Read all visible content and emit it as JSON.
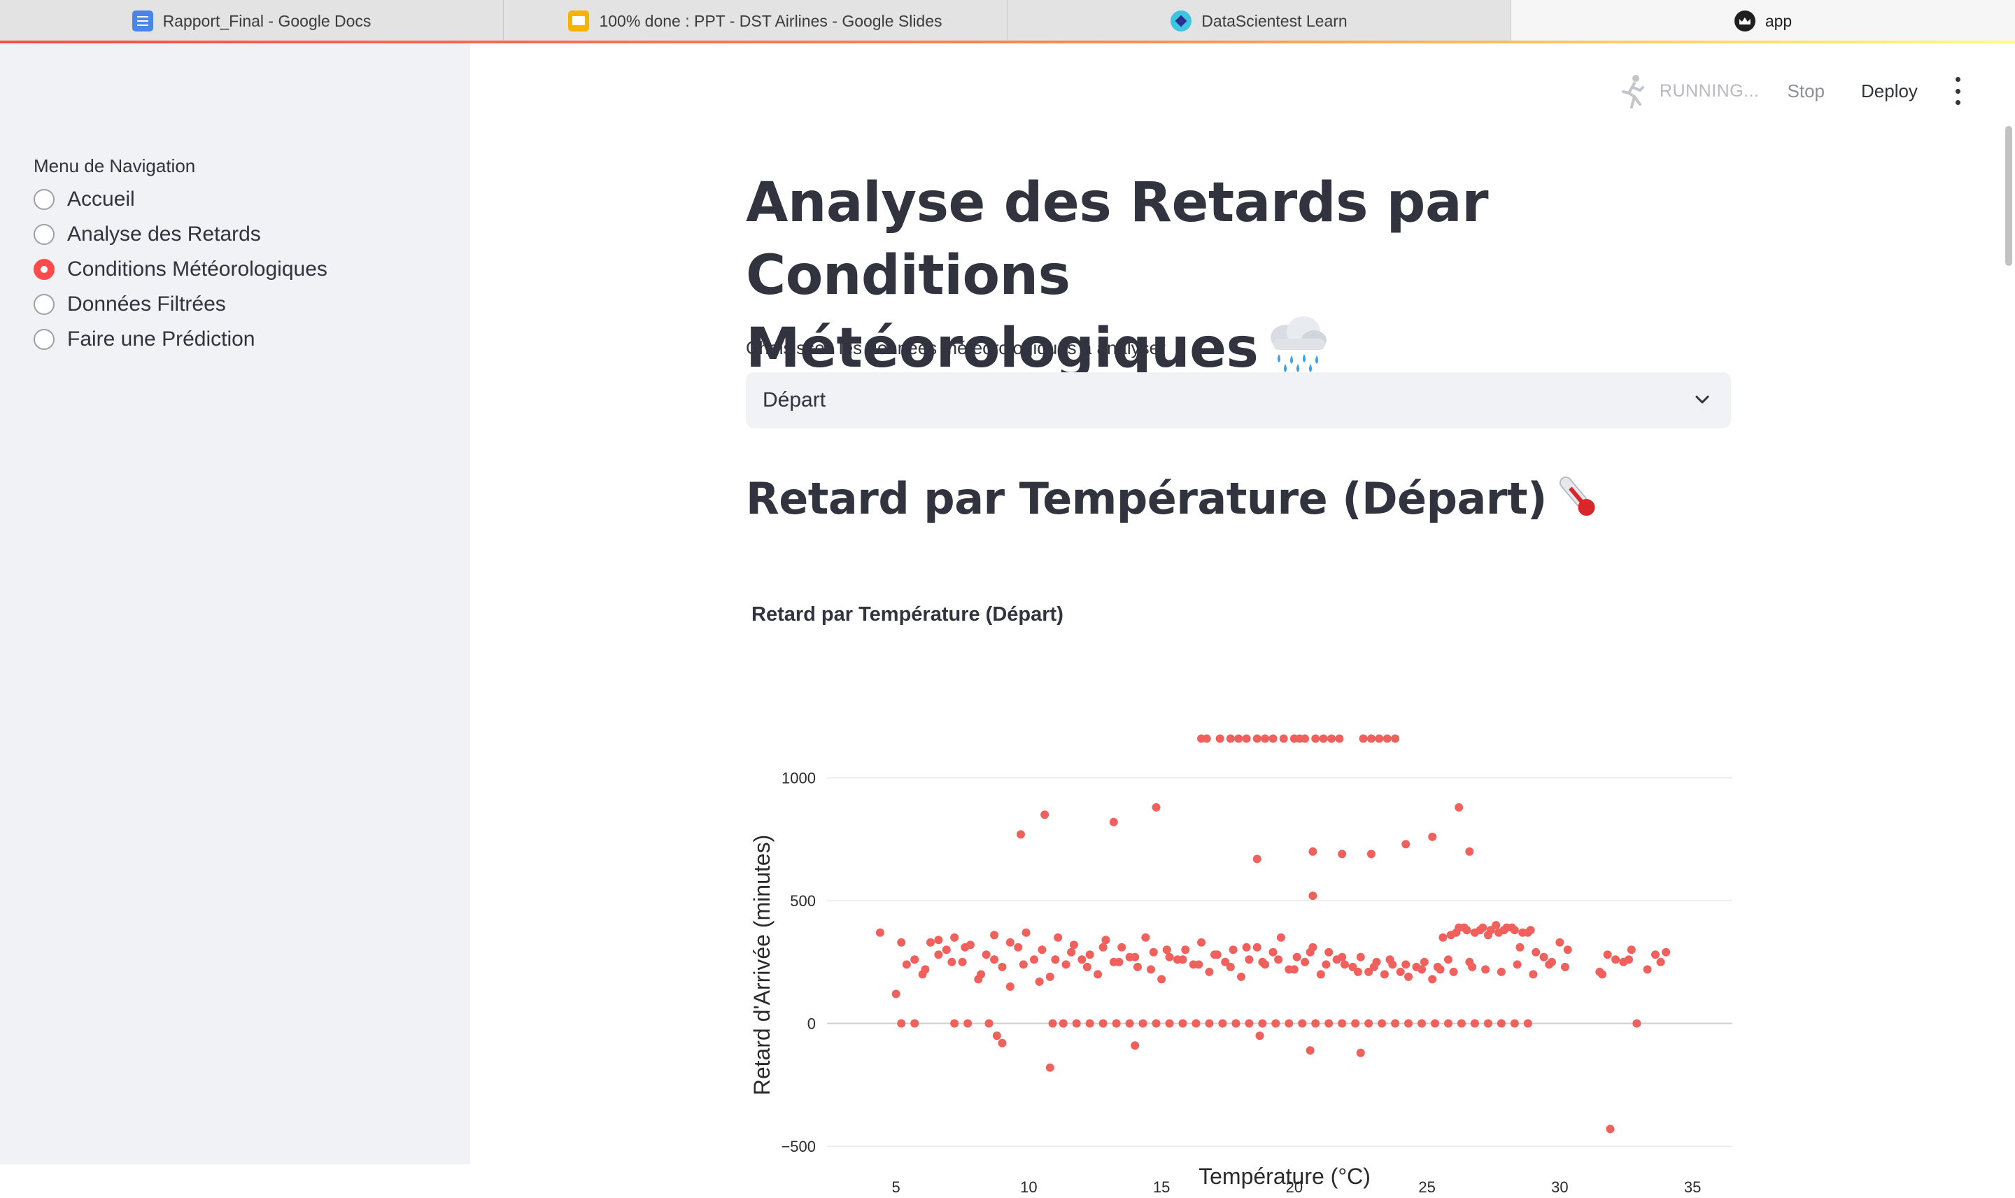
{
  "browser": {
    "tabs": [
      {
        "title": "Rapport_Final - Google Docs",
        "icon": "google-docs-icon"
      },
      {
        "title": "100% done : PPT - DST Airlines - Google Slides",
        "icon": "google-slides-icon"
      },
      {
        "title": "DataScientest Learn",
        "icon": "datascientest-icon"
      },
      {
        "title": "app",
        "icon": "streamlit-icon"
      }
    ]
  },
  "colors": {
    "accent": "#ff4b4b",
    "sidebar_bg": "#f0f2f6",
    "marker": "#f0605c",
    "text": "#31333f"
  },
  "sidebar": {
    "title": "Menu de Navigation",
    "items": [
      {
        "label": "Accueil",
        "selected": false
      },
      {
        "label": "Analyse des Retards",
        "selected": false
      },
      {
        "label": "Conditions Météorologiques",
        "selected": true
      },
      {
        "label": "Données Filtrées",
        "selected": false
      },
      {
        "label": "Faire une Prédiction",
        "selected": false
      }
    ]
  },
  "toolbar": {
    "status": "RUNNING...",
    "stop_label": "Stop",
    "deploy_label": "Deploy"
  },
  "main": {
    "title_line1": "Analyse des Retards par Conditions",
    "title_line2": "Météorologiques",
    "select_label": "Choisissez les données météorologiques à analyser",
    "select_value": "Départ",
    "section_title": "Retard par Température (Départ)"
  },
  "chart_data": {
    "type": "scatter",
    "title": "Retard par Température (Départ)",
    "xlabel": "Température (°C)",
    "ylabel": "Retard d'Arrivée (minutes)",
    "xlim": [
      2.4,
      36.5
    ],
    "ylim": [
      -540,
      1170
    ],
    "xticks": [
      5,
      10,
      15,
      20,
      25,
      30,
      35
    ],
    "yticks": [
      -500,
      0,
      500,
      1000
    ],
    "ytick_labels": [
      "−500",
      "0",
      "500",
      "1000"
    ],
    "grid": true,
    "marker_color": "#f0605c",
    "x": [
      16.5,
      16.7,
      17.2,
      17.6,
      17.9,
      18.2,
      18.6,
      18.9,
      19.2,
      19.6,
      20.0,
      20.2,
      20.4,
      20.8,
      21.1,
      21.4,
      21.7,
      22.6,
      22.9,
      23.2,
      23.5,
      23.8,
      9.7,
      10.6,
      13.2,
      14.8,
      18.6,
      20.7,
      21.8,
      22.9,
      24.2,
      25.2,
      26.2,
      26.6,
      20.7,
      4.4,
      5.0,
      5.2,
      5.4,
      5.7,
      6.0,
      6.3,
      6.6,
      6.9,
      7.2,
      7.5,
      7.8,
      8.1,
      8.4,
      8.7,
      9.0,
      9.3,
      9.6,
      9.9,
      10.2,
      10.5,
      10.8,
      11.1,
      11.4,
      11.7,
      12.0,
      12.3,
      12.6,
      12.9,
      13.2,
      13.5,
      13.8,
      14.1,
      14.4,
      14.7,
      15.0,
      15.3,
      15.6,
      15.9,
      16.2,
      16.5,
      16.8,
      17.1,
      17.4,
      17.7,
      18.0,
      18.3,
      18.6,
      18.9,
      19.2,
      19.5,
      19.8,
      20.1,
      20.4,
      20.7,
      21.0,
      21.3,
      21.6,
      21.9,
      22.2,
      22.5,
      22.8,
      23.1,
      23.4,
      23.7,
      24.0,
      24.3,
      24.6,
      24.9,
      25.2,
      25.5,
      25.8,
      26.1,
      26.4,
      26.7,
      27.0,
      27.3,
      27.6,
      27.9,
      28.2,
      28.5,
      28.8,
      29.1,
      29.4,
      29.7,
      30.0,
      30.3,
      31.5,
      31.8,
      32.1,
      32.4,
      32.7,
      33.3,
      33.6,
      34.0,
      6.1,
      6.6,
      7.1,
      7.6,
      8.2,
      8.7,
      9.3,
      9.8,
      10.4,
      11.0,
      11.6,
      12.2,
      12.8,
      13.4,
      14.0,
      14.6,
      15.2,
      15.8,
      16.4,
      17.0,
      17.6,
      18.2,
      18.8,
      19.4,
      20.0,
      20.6,
      21.2,
      21.8,
      22.4,
      23.0,
      23.6,
      24.2,
      24.8,
      25.4,
      26.0,
      26.6,
      27.2,
      27.8,
      28.4,
      29.0,
      29.6,
      30.2,
      31.6,
      32.6,
      33.8,
      26.2,
      26.5,
      26.8,
      27.1,
      27.4,
      27.7,
      28.0,
      28.3,
      28.6,
      28.9,
      25.6,
      25.9,
      5.2,
      5.7,
      7.2,
      7.7,
      8.5,
      10.9,
      11.3,
      11.8,
      12.3,
      12.8,
      13.3,
      13.8,
      14.3,
      14.8,
      15.3,
      15.8,
      16.3,
      16.8,
      17.3,
      17.8,
      18.3,
      18.8,
      19.3,
      19.8,
      20.3,
      20.8,
      21.3,
      21.8,
      22.3,
      22.8,
      23.3,
      23.8,
      24.3,
      24.8,
      25.3,
      25.8,
      26.3,
      26.8,
      27.3,
      27.8,
      28.3,
      28.8,
      32.9,
      8.8,
      9.0,
      10.8,
      14.0,
      18.7,
      20.6,
      22.5,
      31.9
    ],
    "y": [
      1160,
      1160,
      1160,
      1160,
      1160,
      1160,
      1160,
      1160,
      1160,
      1160,
      1160,
      1160,
      1160,
      1160,
      1160,
      1160,
      1160,
      1160,
      1160,
      1160,
      1160,
      1160,
      770,
      850,
      820,
      880,
      670,
      700,
      690,
      690,
      730,
      760,
      880,
      700,
      520,
      370,
      120,
      330,
      240,
      260,
      200,
      330,
      340,
      300,
      350,
      250,
      320,
      180,
      280,
      360,
      230,
      150,
      310,
      370,
      260,
      300,
      190,
      350,
      240,
      320,
      260,
      280,
      200,
      340,
      250,
      310,
      270,
      230,
      350,
      290,
      180,
      270,
      260,
      300,
      240,
      330,
      210,
      280,
      250,
      300,
      190,
      260,
      310,
      240,
      290,
      350,
      220,
      270,
      250,
      310,
      200,
      290,
      260,
      240,
      230,
      270,
      210,
      250,
      200,
      240,
      210,
      190,
      230,
      250,
      180,
      220,
      260,
      370,
      390,
      230,
      380,
      360,
      400,
      380,
      390,
      310,
      370,
      290,
      270,
      250,
      330,
      300,
      210,
      280,
      260,
      250,
      300,
      220,
      280,
      290,
      220,
      280,
      250,
      310,
      200,
      260,
      330,
      240,
      170,
      260,
      290,
      230,
      310,
      250,
      270,
      220,
      300,
      260,
      240,
      280,
      230,
      310,
      250,
      260,
      220,
      290,
      240,
      270,
      210,
      230,
      260,
      240,
      220,
      230,
      210,
      250,
      220,
      210,
      240,
      200,
      240,
      230,
      200,
      260,
      250,
      390,
      380,
      370,
      390,
      380,
      370,
      390,
      380,
      370,
      380,
      350,
      360,
      0,
      0,
      0,
      0,
      0,
      0,
      0,
      0,
      0,
      0,
      0,
      0,
      0,
      0,
      0,
      0,
      0,
      0,
      0,
      0,
      0,
      0,
      0,
      0,
      0,
      0,
      0,
      0,
      0,
      0,
      0,
      0,
      0,
      0,
      0,
      0,
      0,
      0,
      0,
      0,
      0,
      0,
      0,
      -50,
      -80,
      -180,
      -90,
      -50,
      -110,
      -120,
      -430
    ]
  }
}
